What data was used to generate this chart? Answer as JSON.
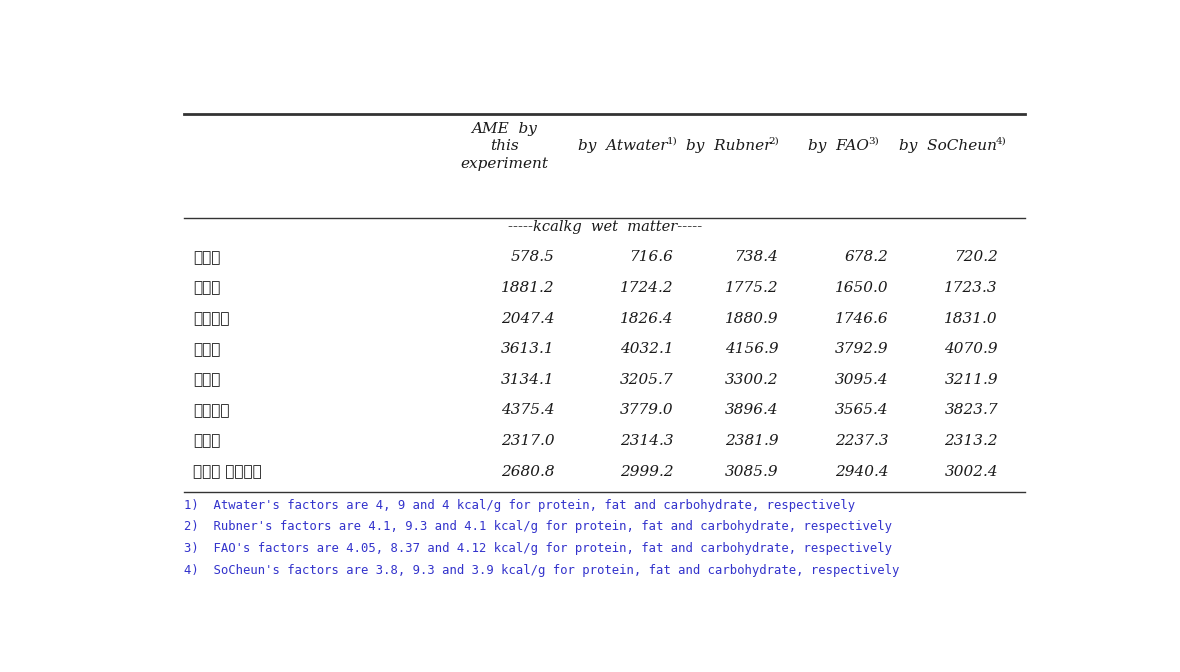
{
  "rows": [
    [
      "갈비탕",
      "578.5",
      "716.6",
      "738.4",
      "678.2",
      "720.2"
    ],
    [
      "불고기",
      "1881.2",
      "1724.2",
      "1775.2",
      "1650.0",
      "1723.3"
    ],
    [
      "제육볶음",
      "2047.4",
      "1826.4",
      "1880.9",
      "1746.6",
      "1831.0"
    ],
    [
      "삼격살",
      "3613.1",
      "4032.1",
      "4156.9",
      "3792.9",
      "4070.9"
    ],
    [
      "돈가스",
      "3134.1",
      "3205.7",
      "3300.2",
      "3095.4",
      "3211.9"
    ],
    [
      "스테이크",
      "4375.4",
      "3779.0",
      "3896.4",
      "3565.4",
      "3823.7"
    ],
    [
      "햄버거",
      "2317.0",
      "2314.3",
      "2381.9",
      "2237.3",
      "2313.2"
    ],
    [
      "프렌치 프라이드",
      "2680.8",
      "2999.2",
      "3085.9",
      "2940.4",
      "3002.4"
    ]
  ],
  "footnotes": [
    "1)  Atwater's factors are 4, 9 and 4 kcal/g for protein, fat and carbohydrate, respectively",
    "2)  Rubner's factors are 4.1, 9.3 and 4.1 kcal/g for protein, fat and carbohydrate, respectively",
    "3)  FAO's factors are 4.05, 8.37 and 4.12 kcal/g for protein, fat and carbohydrate, respectively",
    "4)  SoCheun's factors are 3.8, 9.3 and 3.9 kcal/g for protein, fat and carbohydrate, respectively"
  ],
  "unit_label": "-----kcalkg  wet  matter-----",
  "bg_color": "#ffffff",
  "text_color": "#1a1a1a",
  "footnote_color": "#3333cc",
  "line_color": "#333333"
}
